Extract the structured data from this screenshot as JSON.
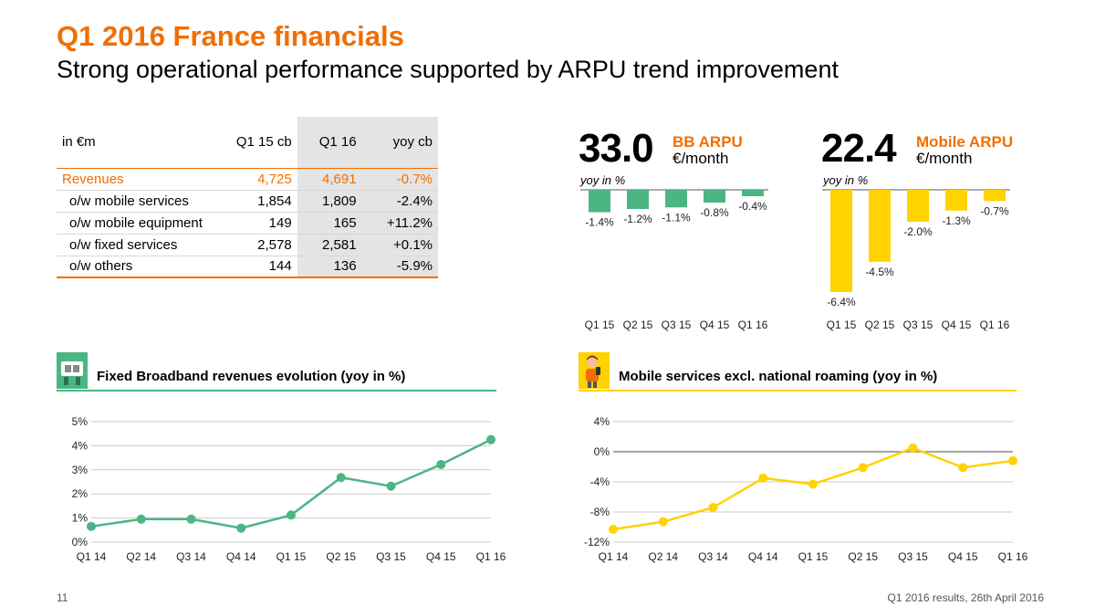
{
  "title": "Q1 2016 France financials",
  "subtitle": "Strong operational performance supported by ARPU trend improvement",
  "table": {
    "headers": [
      "in €m",
      "Q1 15 cb",
      "Q1 16",
      "yoy cb"
    ],
    "rows": [
      [
        "Revenues",
        "4,725",
        "4,691",
        "-0.7%"
      ],
      [
        "o/w mobile services",
        "1,854",
        "1,809",
        "-2.4%"
      ],
      [
        "o/w mobile equipment",
        "149",
        "165",
        "+11.2%"
      ],
      [
        "o/w fixed services",
        "2,578",
        "2,581",
        "+0.1%"
      ],
      [
        "o/w others",
        "144",
        "136",
        "-5.9%"
      ]
    ]
  },
  "bb_arpu": {
    "value": "33.0",
    "name": "BB ARPU",
    "unit": "€/month",
    "note": "yoy in %"
  },
  "mobile_arpu": {
    "value": "22.4",
    "name": "Mobile ARPU",
    "unit": "€/month",
    "note": "yoy in %"
  },
  "fixed_section": {
    "title": "Fixed Broadband revenues evolution (yoy in %)"
  },
  "mobile_section": {
    "title": "Mobile services excl. national roaming (yoy in %)"
  },
  "colors": {
    "orange": "#f16e00",
    "green": "#4bb584",
    "yellow": "#ffd200",
    "grid": "#cccccc"
  },
  "chart_data": [
    {
      "id": "bb-arpu",
      "type": "bar",
      "title": "BB ARPU yoy in %",
      "categories": [
        "Q1 15",
        "Q2 15",
        "Q3 15",
        "Q4 15",
        "Q1 16"
      ],
      "values": [
        -1.4,
        -1.2,
        -1.1,
        -0.8,
        -0.4
      ],
      "labels": [
        "-1.4%",
        "-1.2%",
        "-1.1%",
        "-0.8%",
        "-0.4%"
      ],
      "ylim": [
        -6.4,
        0
      ]
    },
    {
      "id": "mobile-arpu",
      "type": "bar",
      "title": "Mobile ARPU yoy in %",
      "categories": [
        "Q1 15",
        "Q2 15",
        "Q3 15",
        "Q4 15",
        "Q1 16"
      ],
      "values": [
        -6.4,
        -4.5,
        -2.0,
        -1.3,
        -0.7
      ],
      "labels": [
        "-6.4%",
        "-4.5%",
        "-2.0%",
        "-1.3%",
        "-0.7%"
      ],
      "ylim": [
        -6.4,
        0
      ]
    },
    {
      "id": "fixed-bb",
      "type": "line",
      "title": "Fixed Broadband revenues evolution (yoy in %)",
      "categories": [
        "Q1 14",
        "Q2 14",
        "Q3 14",
        "Q4 14",
        "Q1 15",
        "Q2 15",
        "Q3 15",
        "Q4 15",
        "Q1 16"
      ],
      "values": [
        0.65,
        0.95,
        0.95,
        0.58,
        1.12,
        2.68,
        2.32,
        3.22,
        4.25
      ],
      "yticks": [
        0,
        1,
        2,
        3,
        4,
        5
      ],
      "ytick_labels": [
        "0%",
        "1%",
        "2%",
        "3%",
        "4%",
        "5%"
      ],
      "ylim": [
        0,
        5
      ]
    },
    {
      "id": "mobile-services",
      "type": "line",
      "title": "Mobile services excl. national roaming (yoy in %)",
      "categories": [
        "Q1 14",
        "Q2 14",
        "Q3 14",
        "Q4 14",
        "Q1 15",
        "Q2 15",
        "Q3 15",
        "Q4 15",
        "Q1 16"
      ],
      "values": [
        -10.3,
        -9.3,
        -7.4,
        -3.5,
        -4.3,
        -2.1,
        0.5,
        -2.1,
        -1.2
      ],
      "yticks": [
        -12,
        -8,
        -4,
        0,
        4
      ],
      "ytick_labels": [
        "-12%",
        "-8%",
        "-4%",
        "0%",
        "4%"
      ],
      "ylim": [
        -12,
        4
      ]
    }
  ],
  "footer": {
    "page": "11",
    "source": "Q1 2016 results, 26th April 2016"
  }
}
